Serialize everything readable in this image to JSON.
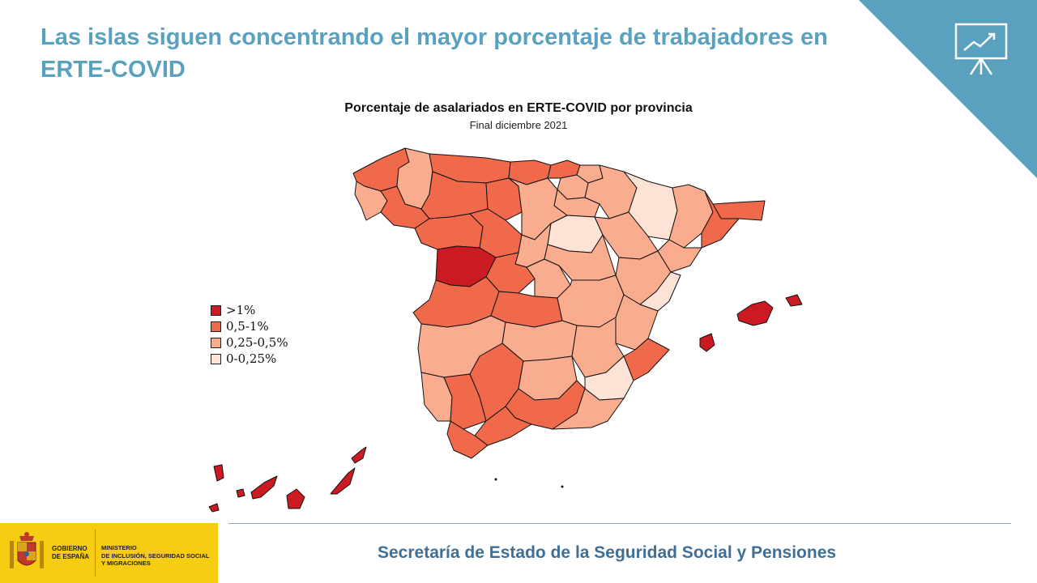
{
  "slide": {
    "title": "Las islas siguen concentrando el mayor porcentaje de trabajadores en ERTE-COVID"
  },
  "map": {
    "title": "Porcentaje de asalariados en ERTE-COVID por provincia",
    "subtitle": "Final diciembre 2021",
    "colors": {
      "gt1": "#cc1a22",
      "r05_1": "#f0694b",
      "r025_05": "#f9ac8e",
      "r0_025": "#fde2d6",
      "border": "#111111"
    },
    "legend": [
      {
        "label": ">1%",
        "color": "#cc1a22"
      },
      {
        "label": "0,5-1%",
        "color": "#f0694b"
      },
      {
        "label": "0,25-0,5%",
        "color": "#f9ac8e"
      },
      {
        "label": "0-0,25%",
        "color": "#fde2d6"
      }
    ]
  },
  "footer": {
    "text": "Secretaría de Estado de la Seguridad Social y Pensiones"
  },
  "logo": {
    "gov_line1": "GOBIERNO",
    "gov_line2": "DE ESPAÑA",
    "min_line1": "MINISTERIO",
    "min_line2": "DE INCLUSIÓN, SEGURIDAD SOCIAL",
    "min_line3": "Y MIGRACIONES",
    "color": "#f6cd13"
  },
  "icons": {
    "corner": "presentation-chart-icon"
  }
}
